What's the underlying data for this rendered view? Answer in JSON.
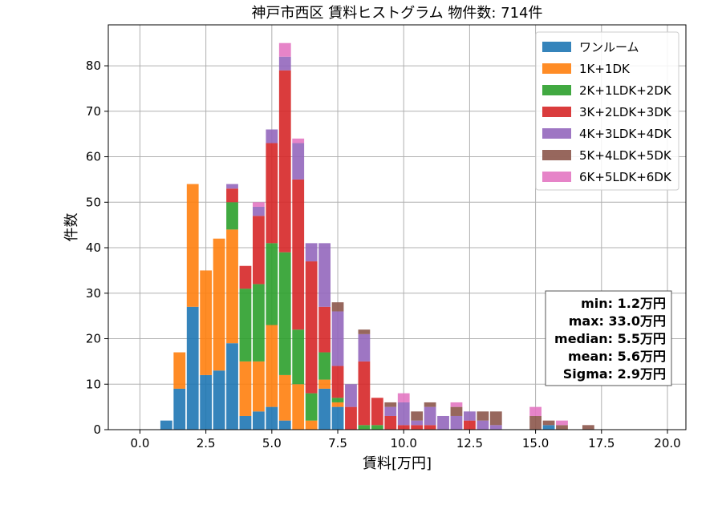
{
  "chart_data": {
    "type": "bar",
    "stacked": true,
    "title": "神戸市西区 賃料ヒストグラム  物件数: 714件",
    "xlabel": "賃料[万円]",
    "ylabel": "件数",
    "xlim": [
      -1.2,
      20.7
    ],
    "ylim": [
      0,
      89
    ],
    "xticks": [
      0.0,
      2.5,
      5.0,
      7.5,
      10.0,
      12.5,
      15.0,
      17.5,
      20.0
    ],
    "xtick_labels": [
      "0.0",
      "2.5",
      "5.0",
      "7.5",
      "10.0",
      "12.5",
      "15.0",
      "17.5",
      "20.0"
    ],
    "yticks": [
      0,
      10,
      20,
      30,
      40,
      50,
      60,
      70,
      80
    ],
    "ytick_labels": [
      "0",
      "10",
      "20",
      "30",
      "40",
      "50",
      "60",
      "70",
      "80"
    ],
    "grid": true,
    "legend_position": "top-right",
    "bin_width": 0.5,
    "bin_centers": [
      1.0,
      1.5,
      2.0,
      2.5,
      3.0,
      3.5,
      4.0,
      4.5,
      5.0,
      5.5,
      6.0,
      6.5,
      7.0,
      7.5,
      8.0,
      8.5,
      9.0,
      9.5,
      10.0,
      10.5,
      11.0,
      11.5,
      12.0,
      12.5,
      13.0,
      13.5,
      14.0,
      14.5,
      15.0,
      15.5,
      16.0,
      16.5,
      17.0
    ],
    "series": [
      {
        "name": "ワンルーム",
        "color": "#1f77b4",
        "values": [
          2,
          9,
          27,
          12,
          13,
          19,
          3,
          4,
          5,
          2,
          0,
          0,
          9,
          5,
          0,
          0,
          0,
          0,
          0,
          0,
          0,
          0,
          0,
          0,
          0,
          0,
          0,
          0,
          0,
          1,
          0,
          0,
          0
        ]
      },
      {
        "name": "1K+1DK",
        "color": "#ff7f0e",
        "values": [
          0,
          8,
          27,
          23,
          29,
          25,
          12,
          11,
          18,
          10,
          10,
          2,
          2,
          1,
          0,
          0,
          0,
          0,
          0,
          0,
          0,
          0,
          0,
          0,
          0,
          0,
          0,
          0,
          0,
          0,
          0,
          0,
          0
        ]
      },
      {
        "name": "2K+1LDK+2DK",
        "color": "#2ca02c",
        "values": [
          0,
          0,
          0,
          0,
          0,
          6,
          16,
          17,
          18,
          27,
          12,
          6,
          6,
          1,
          0,
          1,
          1,
          0,
          0,
          0,
          0,
          0,
          0,
          0,
          0,
          0,
          0,
          0,
          0,
          0,
          0,
          0,
          0
        ]
      },
      {
        "name": "3K+2LDK+3DK",
        "color": "#d62728",
        "values": [
          0,
          0,
          0,
          0,
          0,
          3,
          5,
          15,
          22,
          40,
          33,
          29,
          10,
          7,
          5,
          14,
          6,
          3,
          1,
          1,
          1,
          0,
          0,
          2,
          0,
          0,
          0,
          0,
          0,
          0,
          0,
          0,
          0
        ]
      },
      {
        "name": "4K+3LDK+4DK",
        "color": "#9467bd",
        "values": [
          0,
          0,
          0,
          0,
          0,
          1,
          0,
          2,
          3,
          3,
          8,
          4,
          14,
          12,
          5,
          6,
          0,
          2,
          5,
          1,
          4,
          3,
          3,
          2,
          2,
          1,
          0,
          0,
          0,
          0,
          0,
          0,
          0
        ]
      },
      {
        "name": "5K+4LDK+5DK",
        "color": "#8c564b",
        "values": [
          0,
          0,
          0,
          0,
          0,
          0,
          0,
          0,
          0,
          0,
          0,
          0,
          0,
          2,
          0,
          1,
          0,
          1,
          0,
          2,
          1,
          0,
          2,
          0,
          2,
          3,
          0,
          0,
          3,
          1,
          1,
          0,
          1
        ]
      },
      {
        "name": "6K+5LDK+6DK",
        "color": "#e377c2",
        "values": [
          0,
          0,
          0,
          0,
          0,
          0,
          0,
          1,
          0,
          3,
          1,
          0,
          0,
          0,
          0,
          0,
          0,
          0,
          2,
          0,
          0,
          0,
          1,
          0,
          0,
          0,
          0,
          0,
          2,
          0,
          1,
          0,
          0
        ]
      }
    ],
    "stats_box": [
      "min: 1.2万円",
      "max: 33.0万円",
      "median: 5.5万円",
      "mean: 5.6万円",
      "Sigma: 2.9万円"
    ]
  }
}
